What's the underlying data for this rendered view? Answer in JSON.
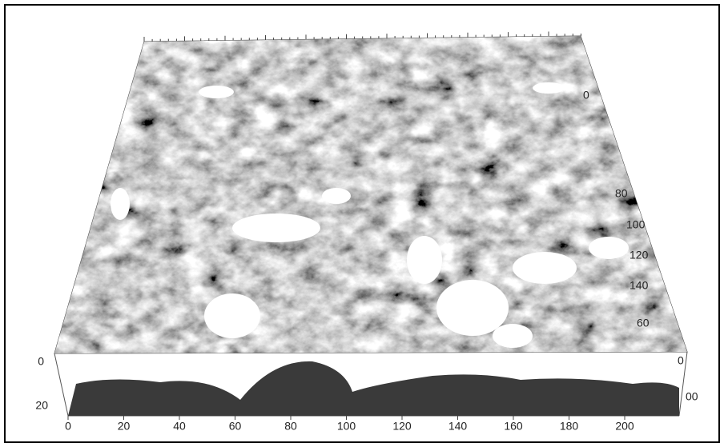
{
  "axes": {
    "x_labels": [
      0,
      20,
      40,
      60,
      80,
      100,
      120,
      140,
      160,
      180,
      200
    ],
    "z_labels": [
      0,
      20
    ],
    "y_labels": [
      {
        "text": "0",
        "pos": "top"
      },
      {
        "text": "80",
        "pos": "a"
      },
      {
        "text": "100",
        "pos": "b"
      },
      {
        "text": "120",
        "pos": "c"
      },
      {
        "text": "140",
        "pos": "d"
      },
      {
        "text": "60",
        "pos": "e"
      },
      {
        "text": "0",
        "pos": "f"
      },
      {
        "text": "00",
        "pos": "g"
      }
    ]
  }
}
